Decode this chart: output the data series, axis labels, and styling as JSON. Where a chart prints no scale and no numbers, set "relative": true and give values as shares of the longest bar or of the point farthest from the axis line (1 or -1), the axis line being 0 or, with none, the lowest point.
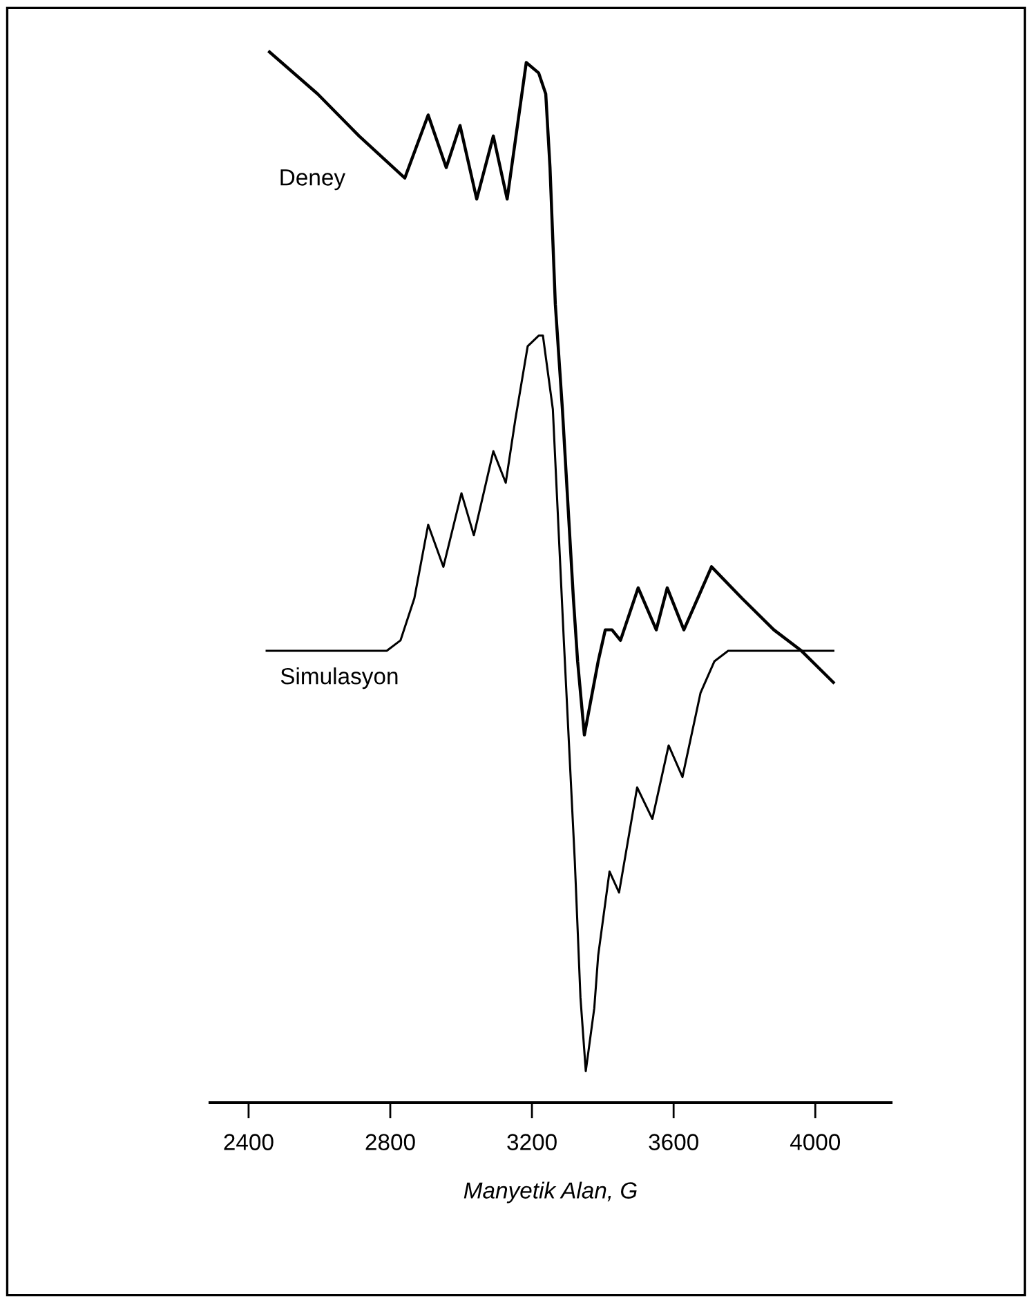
{
  "chart_data": {
    "type": "line",
    "relative": true,
    "xlabel": "Manyetik Alan, G",
    "xlim": [
      2291,
      4214
    ],
    "xticks": [
      2400,
      2800,
      3200,
      3600,
      4000
    ],
    "tick_labels": "x",
    "grid": false,
    "legend": false,
    "marker": "none",
    "line_style": "solid",
    "series": [
      {
        "name": "Deney",
        "color": "#000000",
        "x": [
          2459,
          2595,
          2712,
          2841,
          2907,
          2958,
          2997,
          3044,
          3091,
          3130,
          3184,
          3219,
          3239,
          3251,
          3266,
          3286,
          3317,
          3329,
          3348,
          3387,
          3407,
          3426,
          3450,
          3500,
          3551,
          3582,
          3629,
          3707,
          3793,
          3883,
          3961,
          4051
        ],
        "values": [
          1.0,
          0.96,
          0.92,
          0.88,
          0.94,
          0.89,
          0.93,
          0.86,
          0.92,
          0.86,
          0.99,
          0.98,
          0.96,
          0.89,
          0.76,
          0.66,
          0.48,
          0.42,
          0.35,
          0.42,
          0.45,
          0.45,
          0.44,
          0.49,
          0.45,
          0.49,
          0.45,
          0.51,
          0.48,
          0.45,
          0.43,
          0.4
        ]
      },
      {
        "name": "Simulasyon",
        "color": "#000000",
        "x": [
          2451,
          2712,
          2790,
          2829,
          2868,
          2907,
          2950,
          3001,
          3036,
          3091,
          3126,
          3153,
          3188,
          3219,
          3231,
          3259,
          3290,
          3321,
          3337,
          3352,
          3376,
          3387,
          3419,
          3446,
          3497,
          3540,
          3586,
          3625,
          3676,
          3715,
          3754,
          3883,
          4051
        ],
        "values": [
          0.43,
          0.43,
          0.43,
          0.44,
          0.48,
          0.55,
          0.51,
          0.58,
          0.54,
          0.62,
          0.59,
          0.65,
          0.72,
          0.73,
          0.73,
          0.66,
          0.44,
          0.23,
          0.1,
          0.03,
          0.09,
          0.14,
          0.22,
          0.2,
          0.3,
          0.27,
          0.34,
          0.31,
          0.39,
          0.42,
          0.43,
          0.43,
          0.43
        ]
      }
    ]
  }
}
